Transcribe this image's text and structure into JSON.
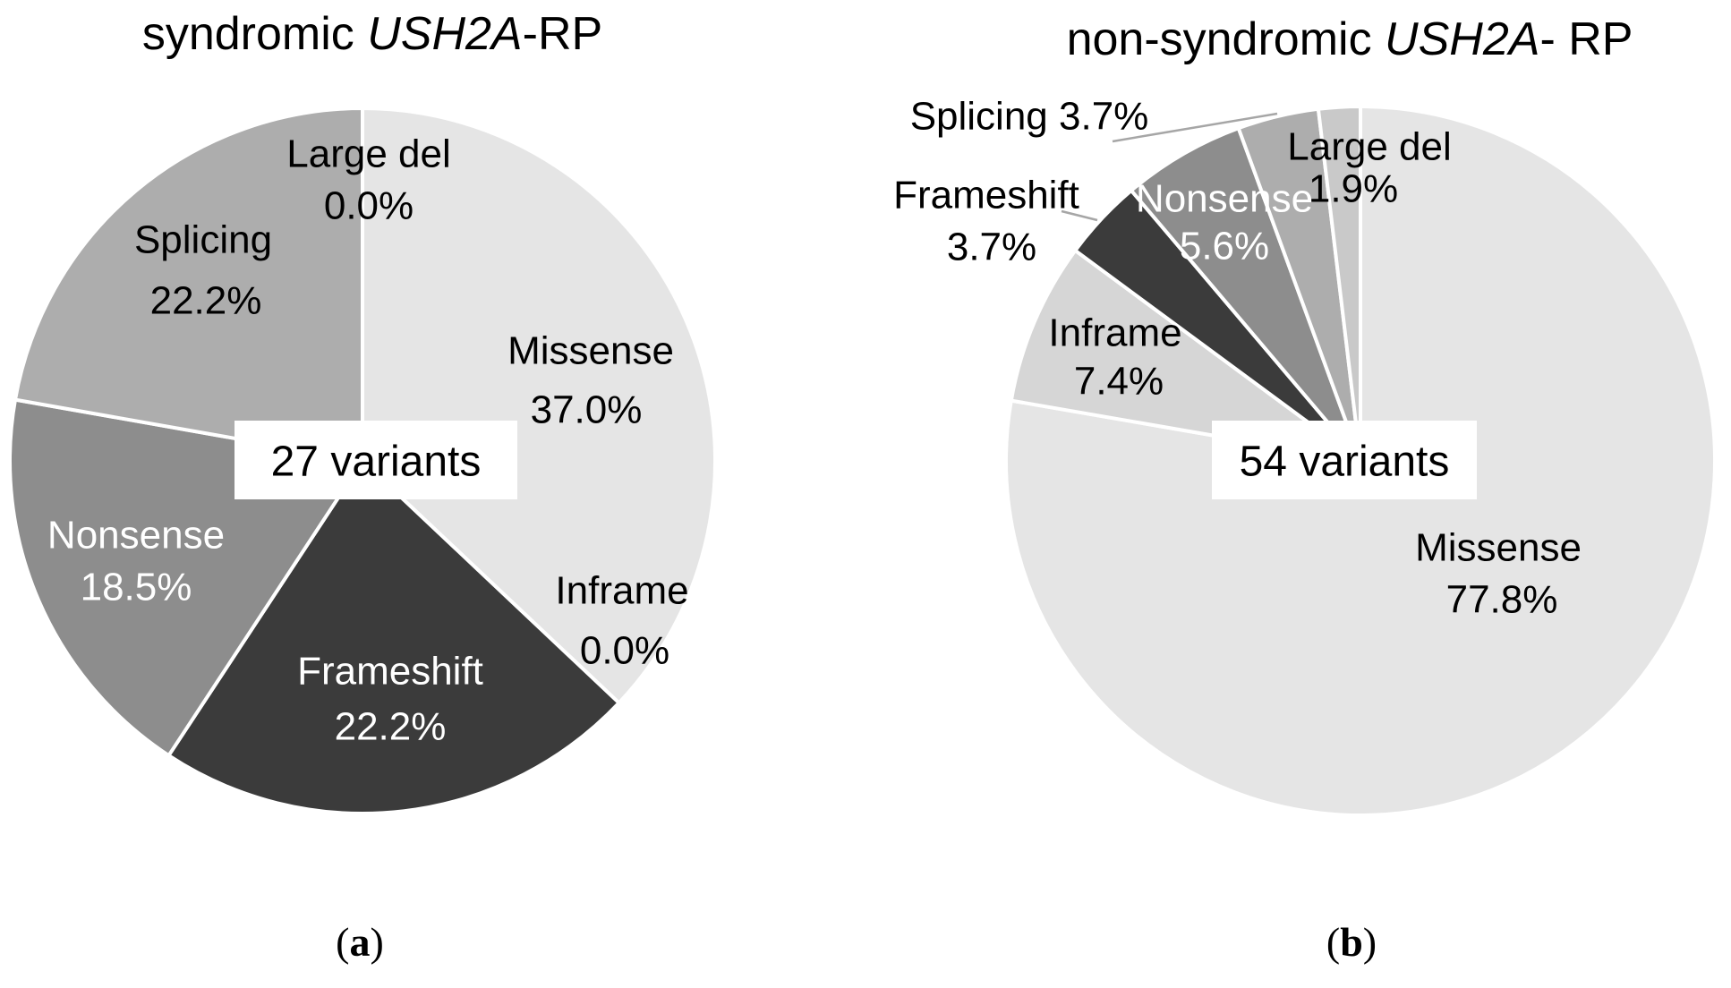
{
  "figure": {
    "background_color": "#ffffff",
    "leader_line_color": "#a6a6a6",
    "slice_border_color": "#ffffff"
  },
  "chart_data": [
    {
      "type": "pie",
      "title": "syndromic USH2A-RP",
      "title_parts": {
        "pre": "syndromic ",
        "italic": "USH2A",
        "post": "-RP"
      },
      "center_label": "27 variants",
      "caption_parts": {
        "open": "(",
        "letter": "a",
        "close": ")"
      },
      "start_angle_deg": 0,
      "direction": "clockwise",
      "legend": "none",
      "categories": [
        "Missense",
        "Inframe",
        "Frameshift",
        "Nonsense",
        "Splicing",
        "Large del"
      ],
      "values": [
        37.0,
        0.0,
        22.2,
        18.5,
        22.2,
        0.0
      ],
      "pct_labels": [
        "37.0%",
        "0.0%",
        "22.2%",
        "18.5%",
        "22.2%",
        "0.0%"
      ],
      "full_labels": [
        "Missense 37.0%",
        "Inframe 0.0%",
        "Frameshift 22.2%",
        "Nonsense 18.5%",
        "Splicing 22.2%",
        "Large del 0.0%"
      ],
      "colors": [
        "#e5e5e5",
        "#d6d6d6",
        "#3b3b3b",
        "#8d8d8d",
        "#adadad",
        "#c9c9c9"
      ]
    },
    {
      "type": "pie",
      "title": "non-syndromic USH2A- RP",
      "title_parts": {
        "pre": "non-syndromic ",
        "italic": "USH2A",
        "post": "- RP"
      },
      "center_label": "54 variants",
      "caption_parts": {
        "open": "(",
        "letter": "b",
        "close": ")"
      },
      "start_angle_deg": 0,
      "direction": "clockwise",
      "legend": "none",
      "categories": [
        "Missense",
        "Inframe",
        "Frameshift",
        "Nonsense",
        "Splicing",
        "Large del"
      ],
      "values": [
        77.8,
        7.4,
        3.7,
        5.6,
        3.7,
        1.9
      ],
      "pct_labels": [
        "77.8%",
        "7.4%",
        "3.7%",
        "5.6%",
        "3.7%",
        "1.9%"
      ],
      "full_labels": [
        "Missense 77.8%",
        "Inframe 7.4%",
        "Frameshift 3.7%",
        "Nonsense 5.6%",
        "Splicing 3.7%",
        "Large del 1.9%"
      ],
      "colors": [
        "#e5e5e5",
        "#d6d6d6",
        "#3b3b3b",
        "#8d8d8d",
        "#adadad",
        "#c9c9c9"
      ]
    }
  ]
}
